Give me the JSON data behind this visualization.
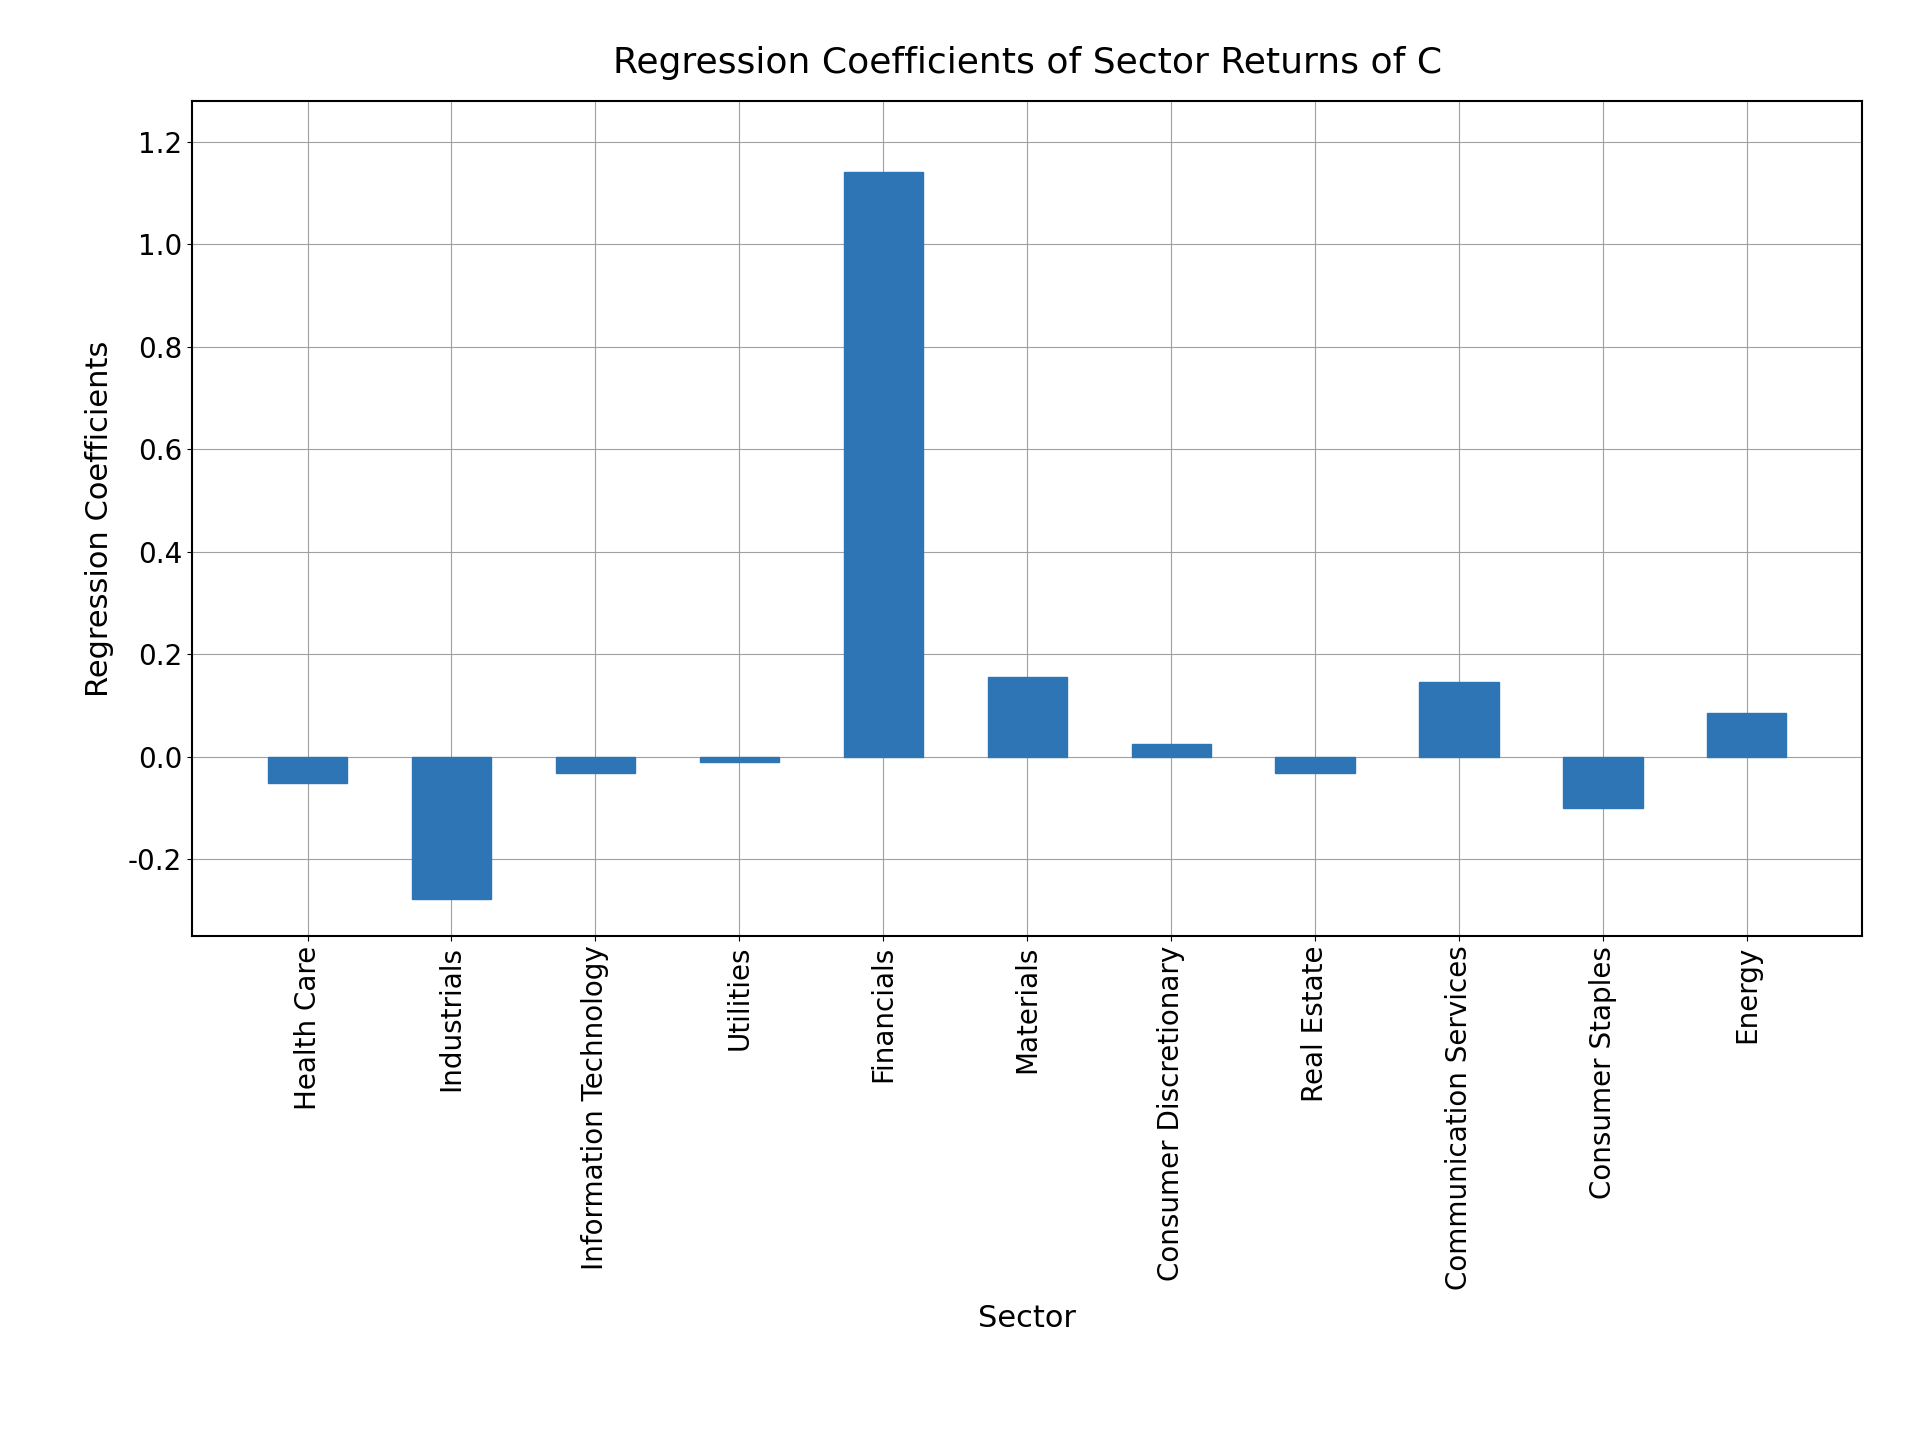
{
  "categories": [
    "Health Care",
    "Industrials",
    "Information Technology",
    "Utilities",
    "Financials",
    "Materials",
    "Consumer Discretionary",
    "Real Estate",
    "Communication Services",
    "Consumer Staples",
    "Energy"
  ],
  "values": [
    -0.052,
    -0.278,
    -0.032,
    -0.01,
    1.142,
    0.155,
    0.025,
    -0.032,
    0.145,
    -0.1,
    0.085
  ],
  "bar_color": "#2e75b6",
  "title": "Regression Coefficients of Sector Returns of C",
  "xlabel": "Sector",
  "ylabel": "Regression Coefficients",
  "ylim": [
    -0.35,
    1.28
  ],
  "yticks": [
    -0.2,
    0.0,
    0.2,
    0.4,
    0.6,
    0.8,
    1.0,
    1.2
  ],
  "title_fontsize": 26,
  "label_fontsize": 22,
  "tick_fontsize": 20,
  "background_color": "#ffffff",
  "grid_color": "#a0a0a0",
  "bar_width": 0.55
}
